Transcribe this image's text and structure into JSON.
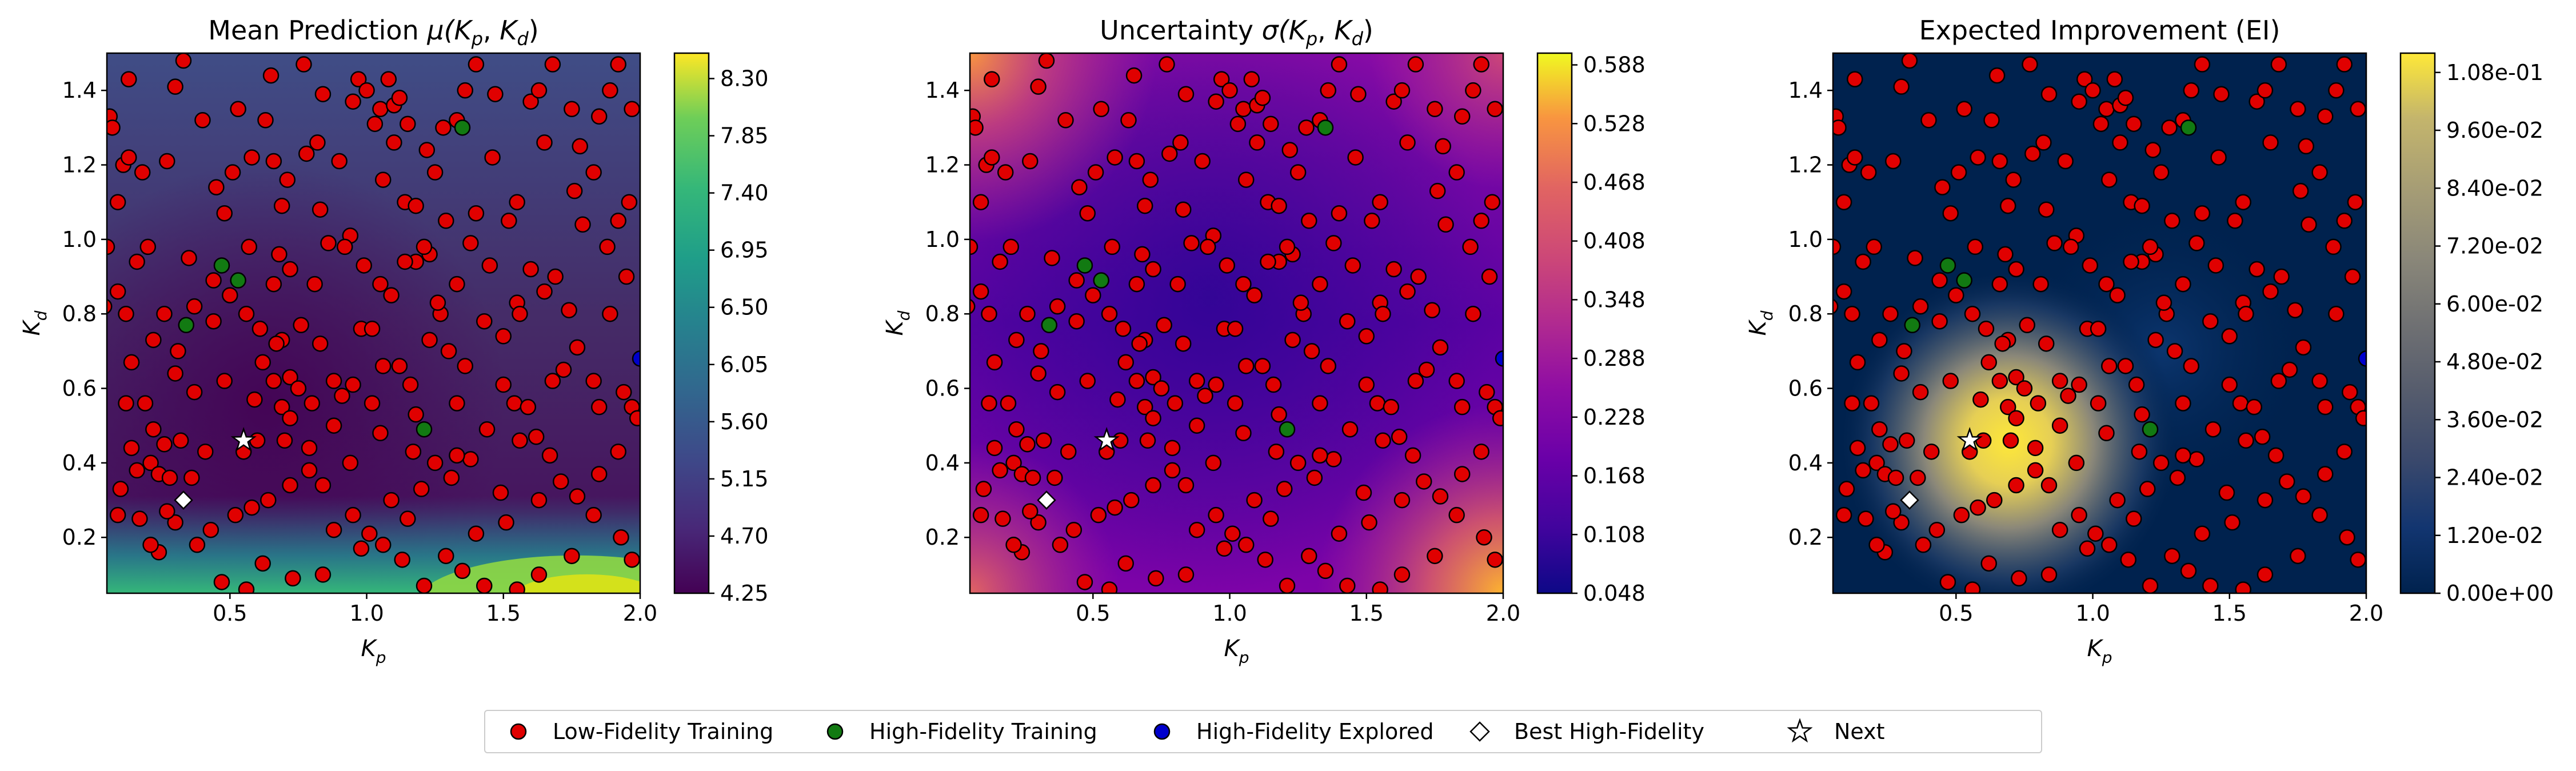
{
  "colors": {
    "low_fidelity": "#e00000",
    "high_fidelity_training": "#127a12",
    "high_fidelity_explored": "#0000cc",
    "best": "#ffffff",
    "next": "#ffffff"
  },
  "chart_data": [
    {
      "type": "heatmap",
      "title_parts": [
        "Mean Prediction ",
        "μ(",
        "K",
        "p",
        ", ",
        "K",
        "d",
        ")"
      ],
      "xlabel": [
        "K",
        "p"
      ],
      "ylabel": [
        "K",
        "d"
      ],
      "xlim": [
        0.05,
        2.0
      ],
      "ylim": [
        0.05,
        1.5
      ],
      "xticks": [
        "0.5",
        "1.0",
        "1.5",
        "2.0"
      ],
      "yticks": [
        "0.2",
        "0.4",
        "0.6",
        "0.8",
        "1.0",
        "1.2",
        "1.4"
      ],
      "colormap": "viridis",
      "colorbar_ticks": [
        "4.25",
        "4.70",
        "5.15",
        "5.60",
        "6.05",
        "6.50",
        "6.95",
        "7.40",
        "7.85",
        "8.30"
      ],
      "colorbar_range": [
        4.25,
        8.5
      ]
    },
    {
      "type": "heatmap",
      "title_parts": [
        "Uncertainty ",
        "σ(",
        "K",
        "p",
        ", ",
        "K",
        "d",
        ")"
      ],
      "xlabel": [
        "K",
        "p"
      ],
      "ylabel": [
        "K",
        "d"
      ],
      "xlim": [
        0.05,
        2.0
      ],
      "ylim": [
        0.05,
        1.5
      ],
      "xticks": [
        "0.5",
        "1.0",
        "1.5",
        "2.0"
      ],
      "yticks": [
        "0.2",
        "0.4",
        "0.6",
        "0.8",
        "1.0",
        "1.2",
        "1.4"
      ],
      "colormap": "plasma",
      "colorbar_ticks": [
        "0.048",
        "0.108",
        "0.168",
        "0.228",
        "0.288",
        "0.348",
        "0.408",
        "0.468",
        "0.528",
        "0.588"
      ],
      "colorbar_range": [
        0.048,
        0.6
      ]
    },
    {
      "type": "heatmap",
      "title_parts": [
        "Expected Improvement (EI)"
      ],
      "xlabel": [
        "K",
        "p"
      ],
      "ylabel": [
        "K",
        "d"
      ],
      "xlim": [
        0.05,
        2.0
      ],
      "ylim": [
        0.05,
        1.5
      ],
      "xticks": [
        "0.5",
        "1.0",
        "1.5",
        "2.0"
      ],
      "yticks": [
        "0.2",
        "0.4",
        "0.6",
        "0.8",
        "1.0",
        "1.2",
        "1.4"
      ],
      "colormap": "cividis",
      "colorbar_ticks": [
        "0.00e+00",
        "1.20e-02",
        "2.40e-02",
        "3.60e-02",
        "4.80e-02",
        "6.00e-02",
        "7.20e-02",
        "8.40e-02",
        "9.60e-02",
        "1.08e-01"
      ],
      "colorbar_range": [
        0,
        0.112
      ]
    }
  ],
  "points": {
    "low_fidelity": [
      [
        0.06,
        1.33
      ],
      [
        0.07,
        1.3
      ],
      [
        0.09,
        1.1
      ],
      [
        0.11,
        1.2
      ],
      [
        0.13,
        1.22
      ],
      [
        0.13,
        1.43
      ],
      [
        0.18,
        1.18
      ],
      [
        0.27,
        1.21
      ],
      [
        0.3,
        1.41
      ],
      [
        0.33,
        1.48
      ],
      [
        0.4,
        1.32
      ],
      [
        0.45,
        1.14
      ],
      [
        0.48,
        1.07
      ],
      [
        0.53,
        1.35
      ],
      [
        0.63,
        1.32
      ],
      [
        0.65,
        1.44
      ],
      [
        0.69,
        1.09
      ],
      [
        0.77,
        1.47
      ],
      [
        0.71,
        1.16
      ],
      [
        0.78,
        1.23
      ],
      [
        0.82,
        1.26
      ],
      [
        0.84,
        1.39
      ],
      [
        0.83,
        1.08
      ],
      [
        0.9,
        1.21
      ],
      [
        0.95,
        1.37
      ],
      [
        0.97,
        1.43
      ],
      [
        1.0,
        1.4
      ],
      [
        1.05,
        1.35
      ],
      [
        1.03,
        1.31
      ],
      [
        1.1,
        1.36
      ],
      [
        1.08,
        1.43
      ],
      [
        1.12,
        1.38
      ],
      [
        1.15,
        1.31
      ],
      [
        1.1,
        1.26
      ],
      [
        1.06,
        1.16
      ],
      [
        1.14,
        1.1
      ],
      [
        1.18,
        1.09
      ],
      [
        1.22,
        1.24
      ],
      [
        1.25,
        1.18
      ],
      [
        1.28,
        1.3
      ],
      [
        1.33,
        1.32
      ],
      [
        1.36,
        1.4
      ],
      [
        1.4,
        1.47
      ],
      [
        1.47,
        1.39
      ],
      [
        1.6,
        1.37
      ],
      [
        1.63,
        1.4
      ],
      [
        1.68,
        1.47
      ],
      [
        1.75,
        1.35
      ],
      [
        1.78,
        1.25
      ],
      [
        1.85,
        1.33
      ],
      [
        1.89,
        1.4
      ],
      [
        1.92,
        1.47
      ],
      [
        1.97,
        1.35
      ],
      [
        1.96,
        1.1
      ],
      [
        1.92,
        1.05
      ],
      [
        1.83,
        1.18
      ],
      [
        1.76,
        1.13
      ],
      [
        1.65,
        1.26
      ],
      [
        1.55,
        1.1
      ],
      [
        1.52,
        1.05
      ],
      [
        1.46,
        1.22
      ],
      [
        1.4,
        1.07
      ],
      [
        1.38,
        0.99
      ],
      [
        1.29,
        1.05
      ],
      [
        1.23,
        0.96
      ],
      [
        1.18,
        0.94
      ],
      [
        1.21,
        0.98
      ],
      [
        1.14,
        0.94
      ],
      [
        1.09,
        0.85
      ],
      [
        1.05,
        0.88
      ],
      [
        0.94,
        1.01
      ],
      [
        0.92,
        0.98
      ],
      [
        0.81,
        0.88
      ],
      [
        0.72,
        0.92
      ],
      [
        0.66,
        0.88
      ],
      [
        0.57,
        0.98
      ],
      [
        0.5,
        0.85
      ],
      [
        0.44,
        0.89
      ],
      [
        0.37,
        0.82
      ],
      [
        0.35,
        0.95
      ],
      [
        0.2,
        0.98
      ],
      [
        0.16,
        0.94
      ],
      [
        0.12,
        0.8
      ],
      [
        0.09,
        0.86
      ],
      [
        0.04,
        0.82
      ],
      [
        0.05,
        0.98
      ],
      [
        0.26,
        0.8
      ],
      [
        0.37,
        0.59
      ],
      [
        0.3,
        0.64
      ],
      [
        0.22,
        0.73
      ],
      [
        0.14,
        0.67
      ],
      [
        0.12,
        0.56
      ],
      [
        0.19,
        0.56
      ],
      [
        0.14,
        0.44
      ],
      [
        0.21,
        0.4
      ],
      [
        0.16,
        0.38
      ],
      [
        0.22,
        0.49
      ],
      [
        0.26,
        0.45
      ],
      [
        0.24,
        0.37
      ],
      [
        0.32,
        0.46
      ],
      [
        0.36,
        0.36
      ],
      [
        0.41,
        0.43
      ],
      [
        0.55,
        0.43
      ],
      [
        0.6,
        0.46
      ],
      [
        0.59,
        0.57
      ],
      [
        0.62,
        0.67
      ],
      [
        0.66,
        0.62
      ],
      [
        0.72,
        0.63
      ],
      [
        0.75,
        0.6
      ],
      [
        0.69,
        0.55
      ],
      [
        0.72,
        0.52
      ],
      [
        0.61,
        0.76
      ],
      [
        0.69,
        0.73
      ],
      [
        0.76,
        0.77
      ],
      [
        0.83,
        0.72
      ],
      [
        0.88,
        0.62
      ],
      [
        0.91,
        0.58
      ],
      [
        0.95,
        0.61
      ],
      [
        0.98,
        0.76
      ],
      [
        1.02,
        0.76
      ],
      [
        1.06,
        0.66
      ],
      [
        1.12,
        0.66
      ],
      [
        1.16,
        0.61
      ],
      [
        1.23,
        0.73
      ],
      [
        1.27,
        0.8
      ],
      [
        1.3,
        0.7
      ],
      [
        1.36,
        0.66
      ],
      [
        1.43,
        0.78
      ],
      [
        1.5,
        0.74
      ],
      [
        1.55,
        0.83
      ],
      [
        1.6,
        0.92
      ],
      [
        1.65,
        0.86
      ],
      [
        1.69,
        0.9
      ],
      [
        1.72,
        0.65
      ],
      [
        1.77,
        0.71
      ],
      [
        1.83,
        0.62
      ],
      [
        1.89,
        0.8
      ],
      [
        1.95,
        0.9
      ],
      [
        1.97,
        0.55
      ],
      [
        1.99,
        0.52
      ],
      [
        1.92,
        0.43
      ],
      [
        1.85,
        0.37
      ],
      [
        1.77,
        0.31
      ],
      [
        1.71,
        0.35
      ],
      [
        1.67,
        0.42
      ],
      [
        1.56,
        0.46
      ],
      [
        1.54,
        0.56
      ],
      [
        1.59,
        0.55
      ],
      [
        1.62,
        0.47
      ],
      [
        1.44,
        0.49
      ],
      [
        1.38,
        0.41
      ],
      [
        1.31,
        0.36
      ],
      [
        1.33,
        0.42
      ],
      [
        1.25,
        0.4
      ],
      [
        1.2,
        0.33
      ],
      [
        1.15,
        0.25
      ],
      [
        1.09,
        0.3
      ],
      [
        1.01,
        0.21
      ],
      [
        0.95,
        0.26
      ],
      [
        0.88,
        0.22
      ],
      [
        0.84,
        0.34
      ],
      [
        0.79,
        0.38
      ],
      [
        0.72,
        0.34
      ],
      [
        0.64,
        0.3
      ],
      [
        0.58,
        0.28
      ],
      [
        0.52,
        0.26
      ],
      [
        0.43,
        0.22
      ],
      [
        0.38,
        0.18
      ],
      [
        0.3,
        0.24
      ],
      [
        0.24,
        0.16
      ],
      [
        0.21,
        0.18
      ],
      [
        0.17,
        0.25
      ],
      [
        0.1,
        0.33
      ],
      [
        0.27,
        0.27
      ],
      [
        0.56,
        0.06
      ],
      [
        0.47,
        0.08
      ],
      [
        0.62,
        0.13
      ],
      [
        0.73,
        0.09
      ],
      [
        0.84,
        0.1
      ],
      [
        0.98,
        0.17
      ],
      [
        1.06,
        0.18
      ],
      [
        1.13,
        0.14
      ],
      [
        1.21,
        0.07
      ],
      [
        1.35,
        0.11
      ],
      [
        1.43,
        0.07
      ],
      [
        1.55,
        0.06
      ],
      [
        1.63,
        0.1
      ],
      [
        1.75,
        0.15
      ],
      [
        1.83,
        0.26
      ],
      [
        1.93,
        0.2
      ],
      [
        1.97,
        0.14
      ],
      [
        1.51,
        0.24
      ],
      [
        1.4,
        0.21
      ],
      [
        1.29,
        0.15
      ],
      [
        1.85,
        0.55
      ],
      [
        1.94,
        0.59
      ],
      [
        1.49,
        0.32
      ],
      [
        1.05,
        0.48
      ],
      [
        0.94,
        0.4
      ],
      [
        0.88,
        0.5
      ],
      [
        0.79,
        0.44
      ],
      [
        0.7,
        0.46
      ],
      [
        1.68,
        0.62
      ],
      [
        1.33,
        0.56
      ],
      [
        1.17,
        0.43
      ],
      [
        1.63,
        0.3
      ],
      [
        1.79,
        1.04
      ],
      [
        1.88,
        0.98
      ],
      [
        1.74,
        0.81
      ],
      [
        1.45,
        0.93
      ],
      [
        1.33,
        0.88
      ],
      [
        1.26,
        0.83
      ],
      [
        0.86,
        0.99
      ],
      [
        0.68,
        0.96
      ],
      [
        0.56,
        0.8
      ],
      [
        0.44,
        0.78
      ],
      [
        0.31,
        0.7
      ],
      [
        0.58,
        1.22
      ],
      [
        0.66,
        1.21
      ],
      [
        0.51,
        1.18
      ],
      [
        0.99,
        0.93
      ],
      [
        1.02,
        0.56
      ],
      [
        1.56,
        0.8
      ],
      [
        1.18,
        0.53
      ],
      [
        0.8,
        0.56
      ],
      [
        0.48,
        0.62
      ],
      [
        0.09,
        0.26
      ],
      [
        0.28,
        0.36
      ],
      [
        0.67,
        0.72
      ],
      [
        1.5,
        0.61
      ]
    ],
    "high_fidelity_training": [
      [
        1.35,
        1.3
      ],
      [
        0.47,
        0.93
      ],
      [
        0.53,
        0.89
      ],
      [
        0.34,
        0.77
      ],
      [
        1.21,
        0.49
      ]
    ],
    "high_fidelity_explored": [
      [
        2.0,
        0.68
      ]
    ],
    "best": [
      [
        0.33,
        0.3
      ]
    ],
    "next": [
      [
        0.55,
        0.46
      ]
    ]
  },
  "legend": {
    "items": [
      {
        "label": "Low-Fidelity Training",
        "key": "low_fidelity",
        "marker": "circle"
      },
      {
        "label": "High-Fidelity Training",
        "key": "high_fidelity_training",
        "marker": "circle"
      },
      {
        "label": "High-Fidelity Explored",
        "key": "high_fidelity_explored",
        "marker": "circle"
      },
      {
        "label": "Best High-Fidelity",
        "key": "best",
        "marker": "diamond"
      },
      {
        "label": "Next",
        "key": "next",
        "marker": "star"
      }
    ]
  }
}
